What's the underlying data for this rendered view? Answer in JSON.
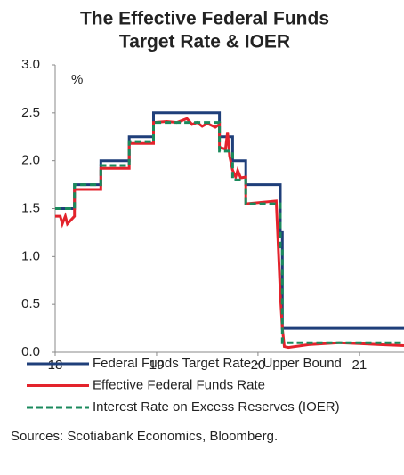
{
  "chart_data": {
    "type": "line",
    "title": [
      "The Effective Federal Funds",
      "Target Rate & IOER"
    ],
    "y_unit": "%",
    "source": "Sources: Scotiabank Economics, Bloomberg.",
    "xlim": [
      18,
      21.44
    ],
    "xticks": [
      18,
      19,
      20,
      21
    ],
    "ylim": [
      0,
      3
    ],
    "yticks": [
      {
        "value": 0,
        "label": "0.0"
      },
      0.5,
      {
        "value": 1,
        "label": "1.0"
      },
      1.5,
      {
        "value": 2,
        "label": "2.0"
      },
      2.5,
      {
        "value": 3,
        "label": "3.0"
      }
    ],
    "grid": false,
    "series": [
      {
        "name": "Federal Funds Target Rate - Upper Bound",
        "color": "#1f3f7a",
        "dash": false,
        "x": [
          18,
          18.19,
          18.19,
          18.45,
          18.45,
          18.73,
          18.73,
          18.97,
          18.97,
          19.62,
          19.62,
          19.75,
          19.75,
          19.88,
          19.88,
          20.22,
          20.22,
          20.24,
          20.24,
          21.44
        ],
        "values": [
          1.5,
          1.5,
          1.75,
          1.75,
          2,
          2,
          2.25,
          2.25,
          2.5,
          2.5,
          2.25,
          2.25,
          2,
          2,
          1.75,
          1.75,
          1.25,
          1.25,
          0.25,
          0.25
        ]
      },
      {
        "name": "Effective Federal Funds Rate",
        "color": "#e3232c",
        "dash": false,
        "x": [
          18,
          18.05,
          18.07,
          18.1,
          18.12,
          18.19,
          18.19,
          18.45,
          18.45,
          18.73,
          18.73,
          18.97,
          18.97,
          19.1,
          19.2,
          19.3,
          19.35,
          19.4,
          19.45,
          19.5,
          19.58,
          19.62,
          19.62,
          19.68,
          19.7,
          19.72,
          19.75,
          19.78,
          19.8,
          19.83,
          19.88,
          19.88,
          20.18,
          20.2,
          20.22,
          20.24,
          20.26,
          20.3,
          20.5,
          20.8,
          21.0,
          21.2,
          21.44
        ],
        "values": [
          1.42,
          1.42,
          1.34,
          1.42,
          1.34,
          1.42,
          1.7,
          1.7,
          1.92,
          1.92,
          2.18,
          2.18,
          2.4,
          2.41,
          2.4,
          2.44,
          2.38,
          2.4,
          2.36,
          2.39,
          2.35,
          2.38,
          2.14,
          2.12,
          2.3,
          2.05,
          1.9,
          1.83,
          1.9,
          1.82,
          1.83,
          1.55,
          1.58,
          1.1,
          0.6,
          0.25,
          0.06,
          0.05,
          0.08,
          0.1,
          0.09,
          0.08,
          0.07
        ]
      },
      {
        "name": "Interest Rate on Excess Reserves (IOER)",
        "color": "#1a8a5c",
        "dash": true,
        "x": [
          18,
          18.19,
          18.19,
          18.45,
          18.45,
          18.73,
          18.73,
          18.97,
          18.97,
          19.62,
          19.62,
          19.75,
          19.75,
          19.88,
          19.88,
          20.22,
          20.22,
          20.24,
          20.24,
          21.44
        ],
        "values": [
          1.5,
          1.5,
          1.75,
          1.75,
          1.95,
          1.95,
          2.2,
          2.2,
          2.4,
          2.4,
          2.1,
          2.1,
          1.8,
          1.8,
          1.55,
          1.55,
          1.1,
          1.1,
          0.1,
          0.1
        ]
      }
    ]
  }
}
